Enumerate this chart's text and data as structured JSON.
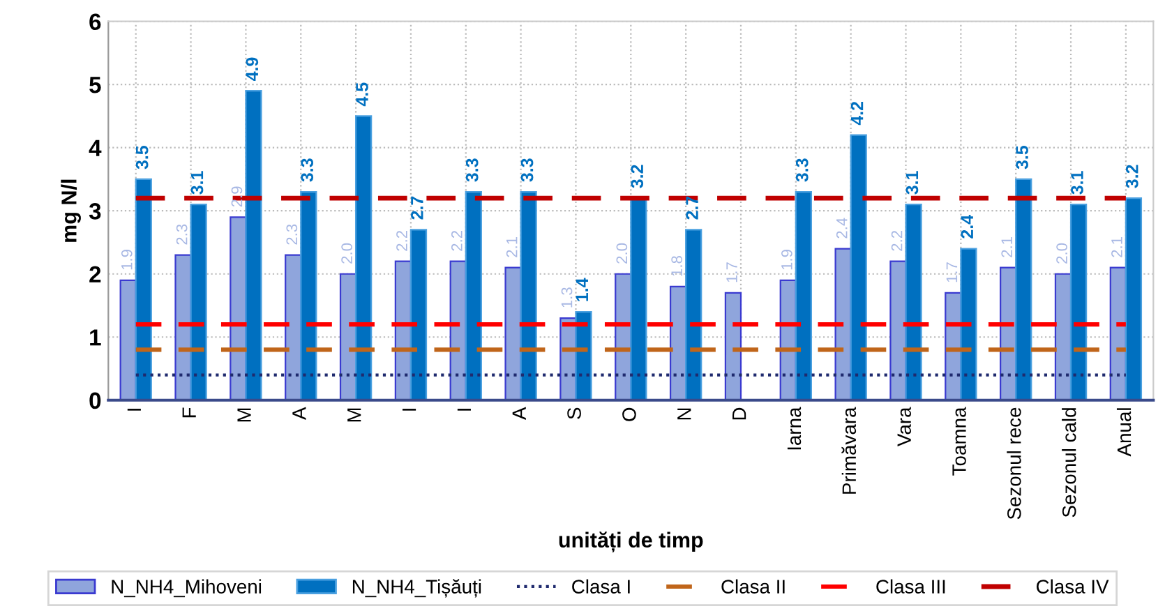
{
  "chart_data": {
    "type": "bar",
    "xlabel": "unități de timp",
    "ylabel": "mg N/l",
    "categories": [
      "I",
      "F",
      "M",
      "A",
      "M",
      "I",
      "I",
      "A",
      "S",
      "O",
      "N",
      "D",
      "Iarna",
      "Primăvara",
      "Vara",
      "Toamna",
      "Sezonul rece",
      "Sezonul cald",
      "Anual"
    ],
    "series": [
      {
        "name": "N_NH4_Mihoveni",
        "color": "#8fa5dc",
        "values": [
          1.9,
          2.3,
          2.9,
          2.3,
          2.0,
          2.2,
          2.2,
          2.1,
          1.3,
          2.0,
          1.8,
          1.7,
          1.9,
          2.4,
          2.2,
          1.7,
          2.1,
          2.0,
          2.1
        ],
        "value_labels": [
          "1.9",
          "2.3",
          "2.9",
          "2.3",
          "2.0",
          "2.2",
          "2.2",
          "2.1",
          "1.3",
          "2.0",
          "1.8",
          "1.7",
          "1.9",
          "2.4",
          "2.2",
          "1.7",
          "2.1",
          "2.0",
          "2.1"
        ]
      },
      {
        "name": "N_NH4_Tișăuți",
        "color": "#0070c0",
        "values": [
          3.5,
          3.1,
          4.9,
          3.3,
          4.5,
          2.7,
          3.3,
          3.3,
          1.4,
          3.2,
          2.7,
          null,
          3.3,
          4.2,
          3.1,
          2.4,
          3.5,
          3.1,
          3.2
        ],
        "value_labels": [
          "3.5",
          "3.1",
          "4.9",
          "3.3",
          "4.5",
          "2.7",
          "3.3",
          "3.3",
          "1.4",
          "3.2",
          "2.7",
          null,
          "3.3",
          "4.2",
          "3.1",
          "2.4",
          "3.5",
          "3.1",
          "3.2"
        ]
      },
      {
        "name": "Clasa I",
        "type": "line",
        "line_style": "dotted",
        "color": "#1f2a6e",
        "values": [
          0.4,
          0.4,
          0.4,
          0.4,
          0.4,
          0.4,
          0.4,
          0.4,
          0.4,
          0.4,
          0.4,
          0.4,
          0.4,
          0.4,
          0.4,
          0.4,
          0.4,
          0.4,
          0.4
        ]
      },
      {
        "name": "Clasa II",
        "type": "line",
        "line_style": "dashed",
        "color": "#c0651a",
        "values": [
          0.8,
          0.8,
          0.8,
          0.8,
          0.8,
          0.8,
          0.8,
          0.8,
          0.8,
          0.8,
          0.8,
          0.8,
          0.8,
          0.8,
          0.8,
          0.8,
          0.8,
          0.8,
          0.8
        ]
      },
      {
        "name": "Clasa III",
        "type": "line",
        "line_style": "dashed",
        "color": "#ff0000",
        "values": [
          1.2,
          1.2,
          1.2,
          1.2,
          1.2,
          1.2,
          1.2,
          1.2,
          1.2,
          1.2,
          1.2,
          1.2,
          1.2,
          1.2,
          1.2,
          1.2,
          1.2,
          1.2,
          1.2
        ]
      },
      {
        "name": "Clasa IV",
        "type": "line",
        "line_style": "dashed",
        "color": "#c00000",
        "values": [
          3.2,
          3.2,
          3.2,
          3.2,
          3.2,
          3.2,
          3.2,
          3.2,
          3.2,
          3.2,
          3.2,
          3.2,
          3.2,
          3.2,
          3.2,
          3.2,
          3.2,
          3.2,
          3.2
        ]
      }
    ],
    "ylim": [
      0,
      6
    ],
    "yticks": [
      0,
      1,
      2,
      3,
      4,
      5,
      6
    ],
    "grid": true,
    "legend": "bottom"
  }
}
